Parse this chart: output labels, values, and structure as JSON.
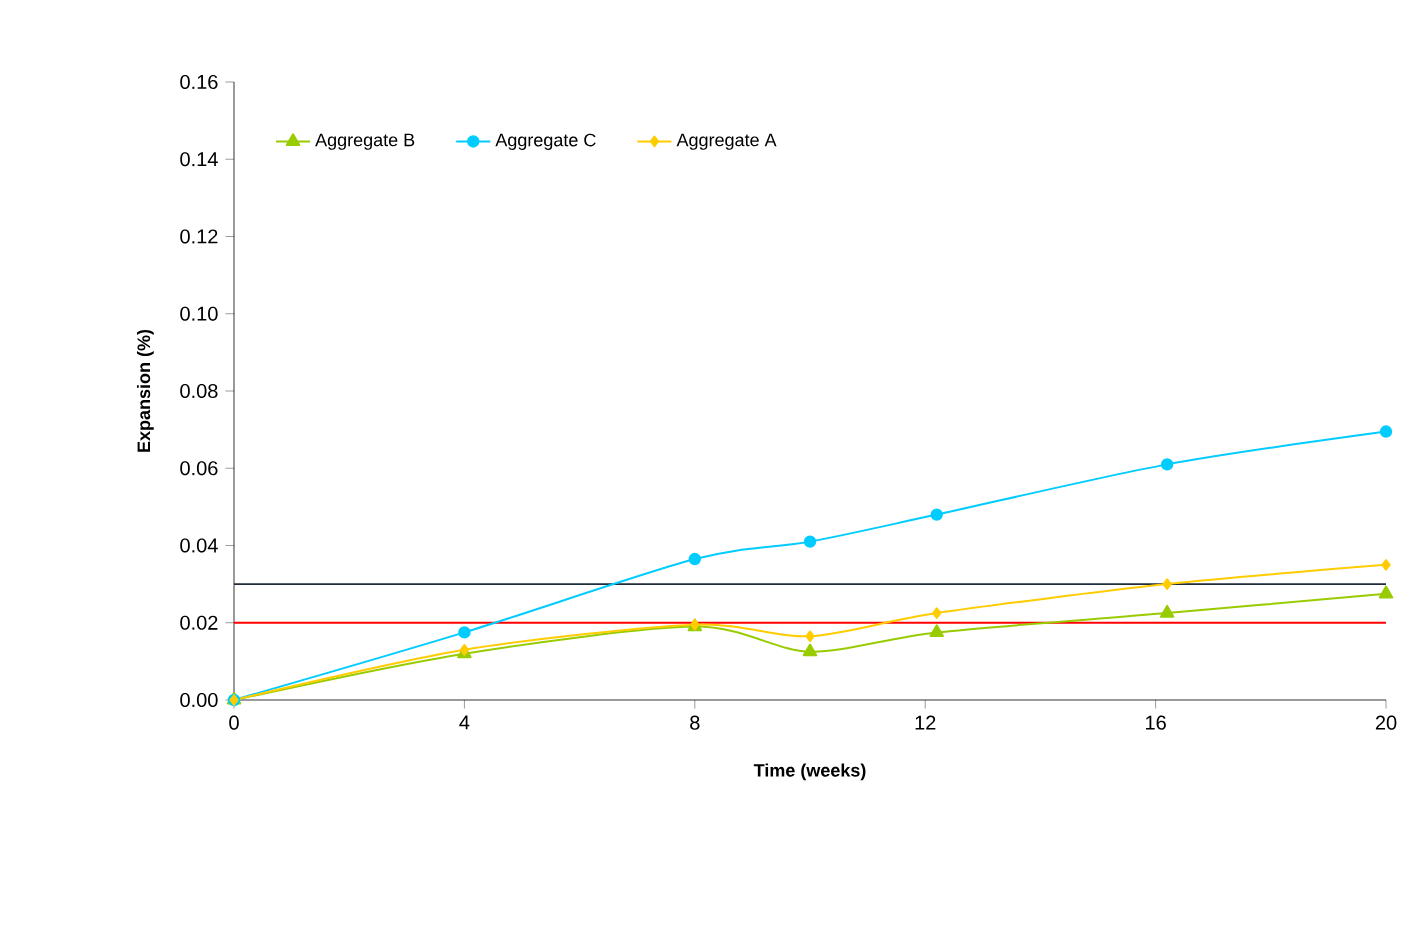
{
  "chart_data": {
    "type": "line",
    "xlabel": "Time (weeks)",
    "ylabel": "Expansion (%)",
    "xlim": [
      0,
      20
    ],
    "xticks": [
      0,
      4,
      8,
      12,
      16,
      20
    ],
    "ylim": [
      0,
      0.16
    ],
    "yticks": [
      {
        "value": 0,
        "label": "0.00"
      },
      {
        "value": 0.02,
        "label": "0.02"
      },
      {
        "value": 0.04,
        "label": "0.04"
      },
      {
        "value": 0.06,
        "label": "0.06"
      },
      {
        "value": 0.08,
        "label": "0.08"
      },
      {
        "value": 0.1,
        "label": "0.10"
      },
      {
        "value": 0.12,
        "label": "0.12"
      },
      {
        "value": 0.14,
        "label": "0.14"
      },
      {
        "value": 0.16,
        "label": "0.16"
      }
    ],
    "legend": "top left",
    "grid": false,
    "series": [
      {
        "name": "Aggregate B",
        "color": "#99cc00",
        "marker": "triangle",
        "x": [
          0,
          4,
          8,
          10,
          12.2,
          16.2,
          20
        ],
        "values": [
          0,
          0.012,
          0.019,
          0.0125,
          0.0175,
          0.0225,
          0.0275
        ]
      },
      {
        "name": "Aggregate C",
        "color": "#00ccff",
        "marker": "circle",
        "x": [
          0,
          4,
          8,
          10,
          12.2,
          16.2,
          20
        ],
        "values": [
          0,
          0.0175,
          0.0365,
          0.041,
          0.048,
          0.061,
          0.0695
        ]
      },
      {
        "name": "Aggregate A",
        "color": "#ffcc00",
        "marker": "diamond",
        "x": [
          0,
          4,
          8,
          10,
          12.2,
          16.2,
          20
        ],
        "values": [
          0,
          0.013,
          0.0195,
          0.0165,
          0.0225,
          0.03,
          0.035
        ]
      }
    ],
    "ref_lines": [
      {
        "axis": "y",
        "value": 0.03,
        "color": "#1f2d3d"
      },
      {
        "axis": "y",
        "value": 0.02,
        "color": "#ff0000"
      }
    ]
  }
}
